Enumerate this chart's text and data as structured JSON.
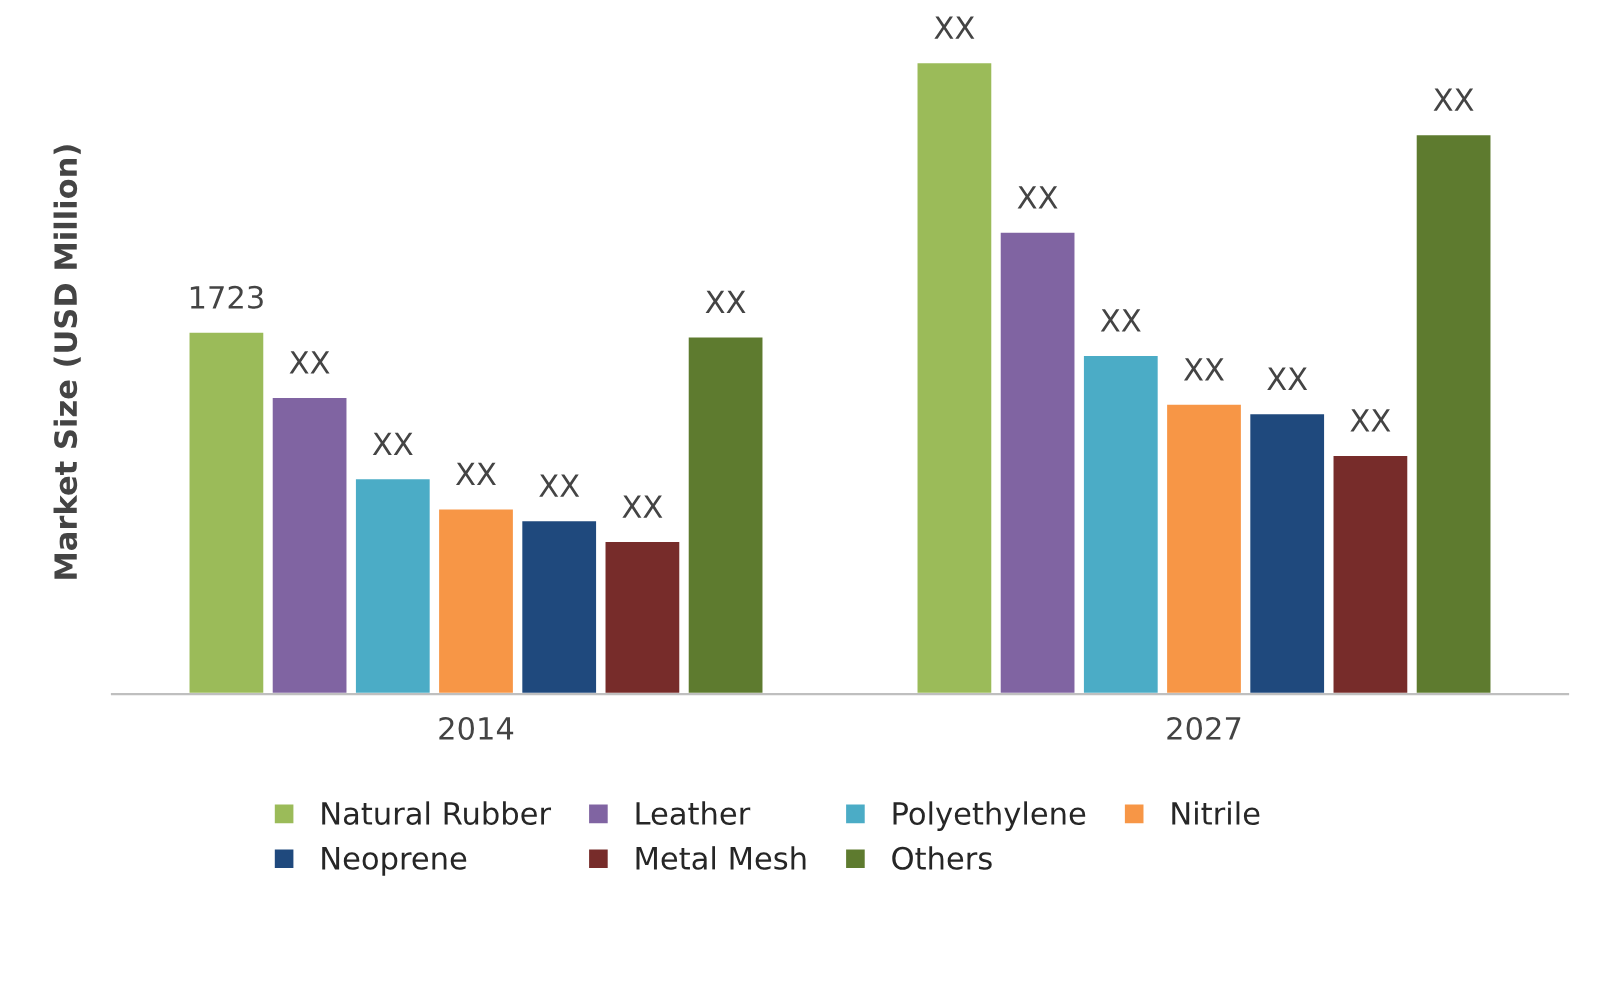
{
  "chart_data": {
    "type": "bar",
    "ylabel": "Market Size (USD Million)",
    "categories": [
      "2014",
      "2027"
    ],
    "tick_labels": "x",
    "legend": "bottom",
    "grid": false,
    "series": [
      {
        "name": "Natural Rubber",
        "color": "#9bbb59",
        "values": [
          1723,
          3004
        ],
        "value_labels": [
          "1723",
          "XX"
        ]
      },
      {
        "name": "Leather",
        "color": "#8064a2",
        "values": [
          1414,
          2198
        ],
        "value_labels": [
          "XX",
          "XX"
        ]
      },
      {
        "name": "Polyethylene",
        "color": "#4bacc6",
        "values": [
          1027,
          1613
        ],
        "value_labels": [
          "XX",
          "XX"
        ]
      },
      {
        "name": "Nitrile",
        "color": "#f79646",
        "values": [
          884,
          1381
        ],
        "value_labels": [
          "XX",
          "XX"
        ]
      },
      {
        "name": "Neoprene",
        "color": "#1f497d",
        "values": [
          828,
          1336
        ],
        "value_labels": [
          "XX",
          "XX"
        ]
      },
      {
        "name": "Metal Mesh",
        "color": "#772c2a",
        "values": [
          729,
          1138
        ],
        "value_labels": [
          "XX",
          "XX"
        ]
      },
      {
        "name": "Others",
        "color": "#5e7b2f",
        "values": [
          1701,
          2662
        ],
        "value_labels": [
          "XX",
          "XX"
        ]
      }
    ]
  }
}
